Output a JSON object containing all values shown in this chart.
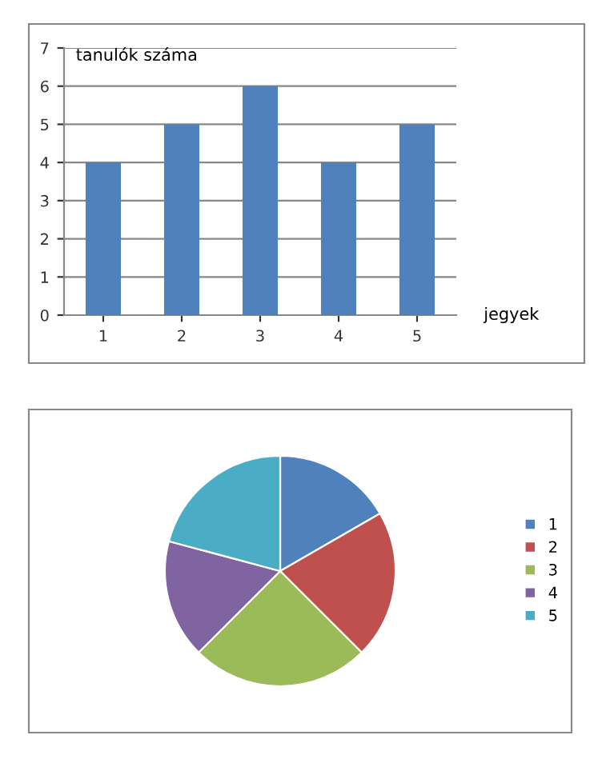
{
  "chart_data": [
    {
      "type": "bar",
      "ylabel": "tanulók száma",
      "xlabel": "jegyek",
      "categories": [
        "1",
        "2",
        "3",
        "4",
        "5"
      ],
      "values": [
        4,
        5,
        6,
        4,
        5
      ],
      "color": "#4f81bd",
      "ylim": [
        0,
        7
      ],
      "yticks": [
        0,
        1,
        2,
        3,
        4,
        5,
        6,
        7
      ],
      "grid": "y",
      "legend": false
    },
    {
      "type": "pie",
      "categories": [
        "1",
        "2",
        "3",
        "4",
        "5"
      ],
      "values": [
        16.67,
        20.83,
        25,
        16.67,
        20.83
      ],
      "colors": [
        "#4f81bd",
        "#c0504d",
        "#9bbb59",
        "#8064a2",
        "#4bacc6"
      ],
      "legend": "right"
    }
  ]
}
